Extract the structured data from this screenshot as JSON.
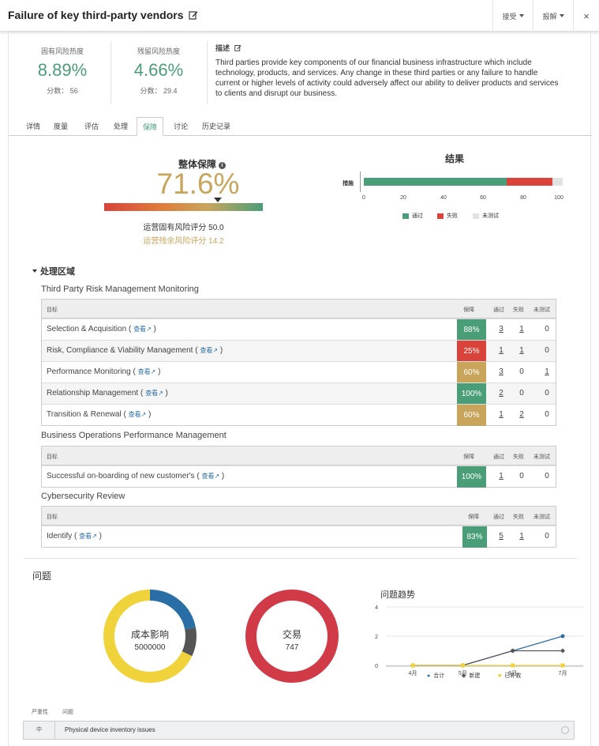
{
  "header": {
    "title": "Failure of key third-party vendors",
    "accept_label": "接受",
    "export_label": "报解",
    "close_label": "×"
  },
  "metrics": {
    "inherent": {
      "label": "固有风险热度",
      "value": "8.89%",
      "score": "分数： 56"
    },
    "residual": {
      "label": "残留风险热度",
      "value": "4.66%",
      "score": "分数： 29.4"
    }
  },
  "description": {
    "heading": "描述",
    "text": "Third parties provide key components of our financial business infrastructure which include technology, products, and services. Any change in these third parties or any failure to handle current or higher levels of activity could adversely affect our ability to deliver products and services to clients and disrupt our business."
  },
  "tabs": [
    {
      "label": "详情"
    },
    {
      "label": "度量"
    },
    {
      "label": "评估"
    },
    {
      "label": "处理"
    },
    {
      "label": "保障",
      "active": true
    },
    {
      "label": "讨论"
    },
    {
      "label": "历史记录"
    }
  ],
  "assurance": {
    "title": "整体保障",
    "value": "71.6%",
    "marker_fraction": 0.716,
    "line1": "运营固有风险评分 50.0",
    "line2": "运营残余风险评分 14.2"
  },
  "results": {
    "title": "结果",
    "row_label": "措施",
    "axis_ticks": [
      "0",
      "20",
      "40",
      "60",
      "80",
      "100"
    ],
    "legend": [
      {
        "label": "通过",
        "color": "#4a9e77"
      },
      {
        "label": "失败",
        "color": "#d9433a"
      },
      {
        "label": "未测试",
        "color": "#e2e2e2"
      }
    ],
    "chart_data": {
      "type": "bar",
      "categories": [
        "措施"
      ],
      "series": [
        {
          "name": "通过",
          "values": [
            72
          ]
        },
        {
          "name": "失败",
          "values": [
            23
          ]
        },
        {
          "name": "未测试",
          "values": [
            5
          ]
        }
      ],
      "xlim": [
        0,
        100
      ]
    }
  },
  "processing": {
    "heading": "处理区域",
    "col_target": "目标",
    "col_assurance": "保障",
    "col_pass": "通过",
    "col_fail": "失败",
    "col_untested": "未测试",
    "view_label": "查看",
    "groups": [
      {
        "title": "Third Party Risk Management Monitoring",
        "rows": [
          {
            "name": "Selection & Acquisition",
            "pct": "88%",
            "color": "#4a9e77",
            "pass": "3",
            "fail": "1",
            "untested": "0"
          },
          {
            "name": "Risk, Compliance & Viability Management",
            "pct": "25%",
            "color": "#d9433a",
            "pass": "1",
            "fail": "1",
            "untested": "0"
          },
          {
            "name": "Performance Monitoring",
            "pct": "60%",
            "color": "#c9a55c",
            "pass": "3",
            "fail": "0",
            "untested": "1"
          },
          {
            "name": "Relationship Management",
            "pct": "100%",
            "color": "#4a9e77",
            "pass": "2",
            "fail": "0",
            "untested": "0"
          },
          {
            "name": "Transition & Renewal",
            "pct": "60%",
            "color": "#c9a55c",
            "pass": "1",
            "fail": "2",
            "untested": "0"
          }
        ]
      },
      {
        "title": "Business Operations Performance Management",
        "rows": [
          {
            "name": "Successful on-boarding of new customer's",
            "pct": "100%",
            "color": "#4a9e77",
            "pass": "1",
            "fail": "0",
            "untested": "0"
          }
        ]
      },
      {
        "title": "Cybersecurity Review",
        "rows": [
          {
            "name": "Identify",
            "pct": "83%",
            "color": "#4a9e77",
            "pass": "5",
            "fail": "1",
            "untested": "0"
          }
        ]
      }
    ]
  },
  "issues": {
    "heading": "问题",
    "cost_donut": {
      "label": "成本影响",
      "value": "5000000",
      "segments": [
        {
          "value": 0.22,
          "color": "#2a6ea6"
        },
        {
          "value": 0.1,
          "color": "#555555"
        },
        {
          "value": 0.68,
          "color": "#f0d33a"
        }
      ]
    },
    "tx_donut": {
      "label": "交易",
      "value": "747",
      "color": "#d13a47"
    },
    "trend": {
      "title": "问题趋势",
      "chart_data": {
        "type": "line",
        "x": [
          "4月",
          "5月",
          "6月",
          "7月"
        ],
        "ylim": [
          0,
          4
        ],
        "yticks": [
          "0",
          "2",
          "4"
        ],
        "series": [
          {
            "name": "合计",
            "values": [
              0,
              0,
              1,
              2
            ],
            "color": "#2a6ea6"
          },
          {
            "name": "新建",
            "values": [
              0,
              0,
              1,
              1
            ],
            "color": "#555555"
          },
          {
            "name": "已补救",
            "values": [
              0,
              0,
              0,
              0
            ],
            "color": "#f0d33a"
          }
        ]
      }
    },
    "col_severity": "严重性",
    "col_issue": "问题",
    "rows": [
      {
        "severity": "中",
        "name": "Physical device inventory issues"
      }
    ]
  }
}
